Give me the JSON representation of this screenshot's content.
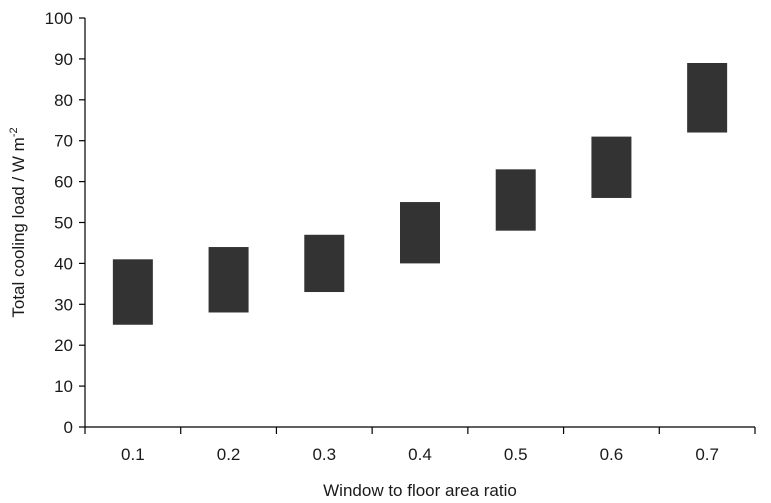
{
  "chart_data": {
    "type": "bar",
    "subtype": "floating-range",
    "title": "",
    "xlabel": "Window to floor area ratio",
    "ylabel_main": "Total cooling load / W m",
    "ylabel_superscript": "-2",
    "ylabel": "Total cooling load / W m-2",
    "categories": [
      "0.1",
      "0.2",
      "0.3",
      "0.4",
      "0.5",
      "0.6",
      "0.7"
    ],
    "series": [
      {
        "low": [
          25,
          28,
          33,
          40,
          48,
          56,
          72
        ],
        "high": [
          41,
          44,
          47,
          55,
          63,
          71,
          89
        ]
      }
    ],
    "ylim": [
      0,
      100
    ],
    "yticks": [
      0,
      10,
      20,
      30,
      40,
      50,
      60,
      70,
      80,
      90,
      100
    ],
    "grid": false,
    "legend": "none",
    "bar_color": "#333333"
  }
}
